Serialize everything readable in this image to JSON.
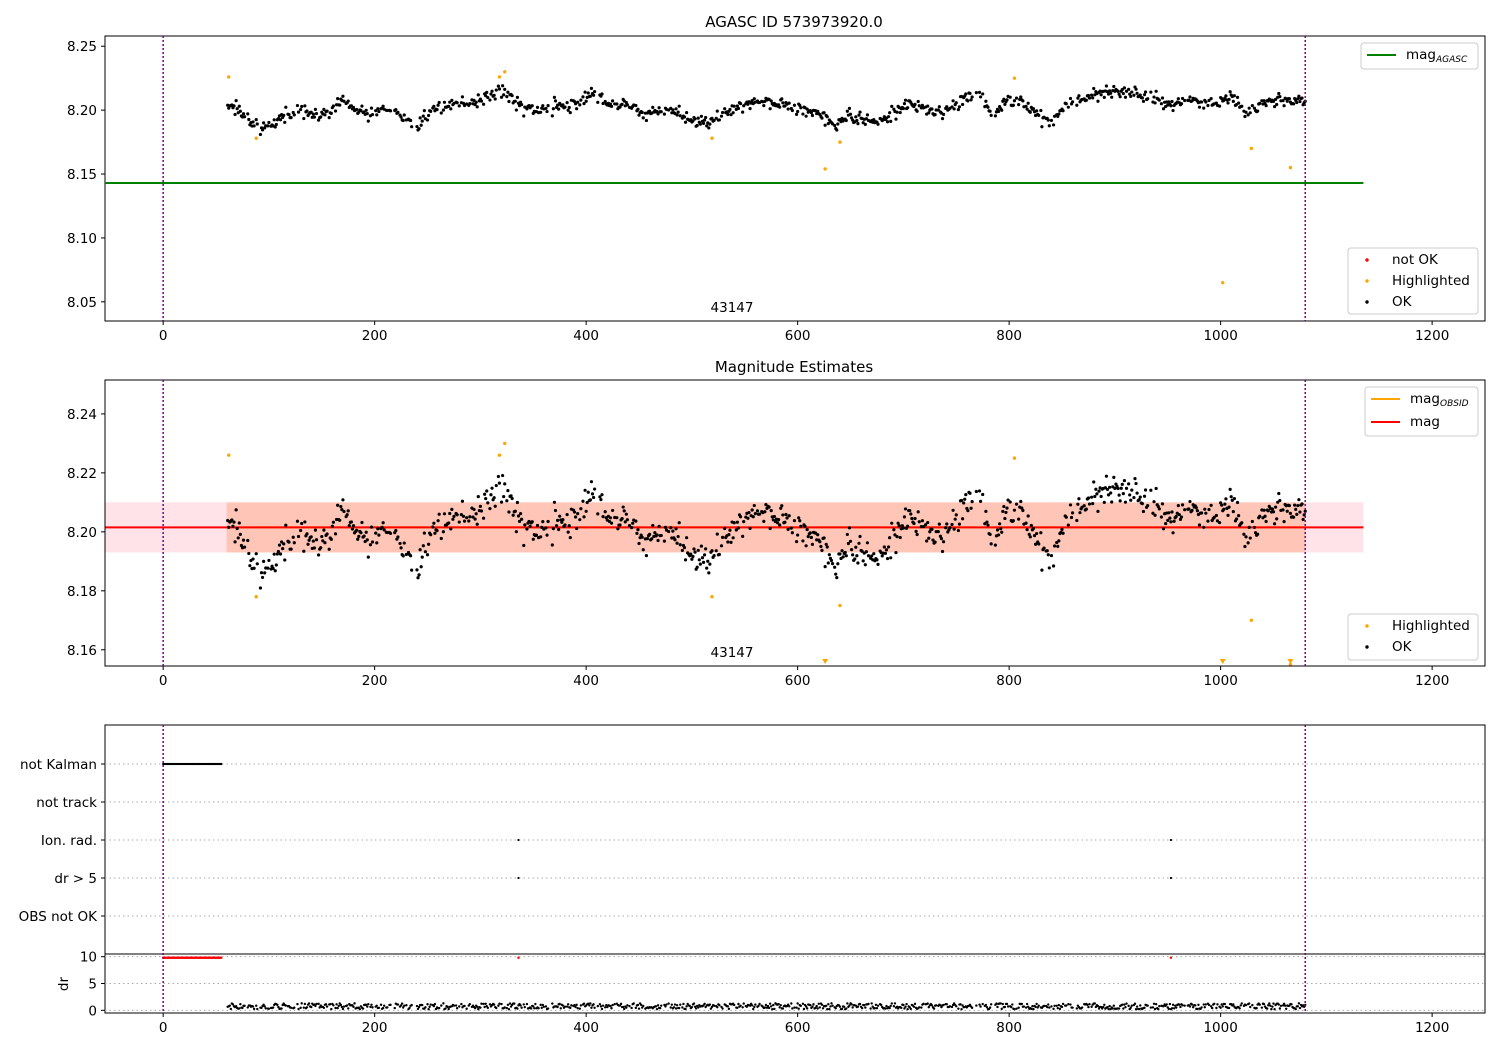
{
  "figure": {
    "axis1_title": "AGASC ID 573973920.0",
    "axis2_title": "Magnitude Estimates",
    "obsid_label": "43147"
  },
  "x_ticks": [
    "0",
    "200",
    "400",
    "600",
    "800",
    "1000",
    "1200"
  ],
  "axis1_yticks": [
    "8.05",
    "8.10",
    "8.15",
    "8.20",
    "8.25"
  ],
  "axis2_yticks": [
    "8.16",
    "8.18",
    "8.20",
    "8.22",
    "8.24"
  ],
  "axis3_flags": [
    "not Kalman",
    "not track",
    "Ion. rad.",
    "dr > 5",
    "OBS not OK"
  ],
  "axis4_yticks": [
    "0",
    "5",
    "10"
  ],
  "axis4_ylabel": "dr",
  "legend1": {
    "line_label_base": "mag",
    "line_label_sub": "AGASC"
  },
  "legend_status1": [
    "not OK",
    "Highlighted",
    "OK"
  ],
  "legend2_lines": [
    {
      "base": "mag",
      "sub": "OBSID",
      "color": "#ffa500"
    },
    {
      "base": "mag",
      "sub": "",
      "color": "#ff0000"
    }
  ],
  "legend_status2": [
    "Highlighted",
    "OK"
  ],
  "colors": {
    "ok": "#000000",
    "highlighted": "#ffa500",
    "not_ok": "#ff0000",
    "agasc_line": "#008000",
    "mag_line": "#ff0000",
    "obsid_band": "#ffa07a",
    "mag_band": "#ffc0cb",
    "obs_boundary": "#800080"
  },
  "chart_data": [
    {
      "type": "scatter",
      "title": "AGASC ID 573973920.0",
      "xlim": [
        -55,
        1250
      ],
      "ylim": [
        8.035,
        8.258
      ],
      "x_range_ok": [
        60,
        1080
      ],
      "agasc_mag": 8.143,
      "agasc_line_x": [
        -55,
        1135
      ],
      "obs_boundaries": [
        0,
        1080
      ],
      "highlighted_points": [
        [
          62,
          8.226
        ],
        [
          88,
          8.178
        ],
        [
          318,
          8.226
        ],
        [
          323,
          8.23
        ],
        [
          519,
          8.178
        ],
        [
          626,
          8.154
        ],
        [
          640,
          8.175
        ],
        [
          805,
          8.225
        ],
        [
          1002,
          8.065
        ],
        [
          1029,
          8.17
        ],
        [
          1066,
          8.155
        ]
      ],
      "series": [
        {
          "name": "OK",
          "segments": [
            [
              60,
              8.204
            ],
            [
              70,
              8.2
            ],
            [
              85,
              8.19
            ],
            [
              100,
              8.186
            ],
            [
              115,
              8.197
            ],
            [
              130,
              8.2
            ],
            [
              150,
              8.195
            ],
            [
              170,
              8.205
            ],
            [
              185,
              8.2
            ],
            [
              200,
              8.197
            ],
            [
              215,
              8.202
            ],
            [
              230,
              8.193
            ],
            [
              240,
              8.186
            ],
            [
              255,
              8.202
            ],
            [
              275,
              8.205
            ],
            [
              290,
              8.205
            ],
            [
              305,
              8.21
            ],
            [
              320,
              8.215
            ],
            [
              335,
              8.205
            ],
            [
              355,
              8.2
            ],
            [
              375,
              8.203
            ],
            [
              395,
              8.205
            ],
            [
              405,
              8.215
            ],
            [
              420,
              8.205
            ],
            [
              440,
              8.203
            ],
            [
              460,
              8.198
            ],
            [
              480,
              8.2
            ],
            [
              500,
              8.193
            ],
            [
              515,
              8.19
            ],
            [
              530,
              8.198
            ],
            [
              555,
              8.205
            ],
            [
              575,
              8.206
            ],
            [
              590,
              8.204
            ],
            [
              605,
              8.2
            ],
            [
              620,
              8.198
            ],
            [
              635,
              8.188
            ],
            [
              650,
              8.196
            ],
            [
              670,
              8.19
            ],
            [
              690,
              8.198
            ],
            [
              705,
              8.205
            ],
            [
              725,
              8.198
            ],
            [
              740,
              8.2
            ],
            [
              755,
              8.206
            ],
            [
              770,
              8.214
            ],
            [
              785,
              8.198
            ],
            [
              800,
              8.207
            ],
            [
              815,
              8.205
            ],
            [
              830,
              8.195
            ],
            [
              840,
              8.19
            ],
            [
              855,
              8.207
            ],
            [
              875,
              8.21
            ],
            [
              895,
              8.215
            ],
            [
              915,
              8.215
            ],
            [
              935,
              8.21
            ],
            [
              955,
              8.205
            ],
            [
              975,
              8.208
            ],
            [
              995,
              8.205
            ],
            [
              1010,
              8.212
            ],
            [
              1025,
              8.198
            ],
            [
              1045,
              8.208
            ],
            [
              1060,
              8.207
            ],
            [
              1080,
              8.207
            ]
          ]
        }
      ]
    },
    {
      "type": "scatter",
      "title": "Magnitude Estimates",
      "xlim": [
        -55,
        1250
      ],
      "ylim": [
        8.1545,
        8.2515
      ],
      "mag": 8.2015,
      "mag_band": [
        8.193,
        8.21
      ],
      "band_x": [
        -55,
        1135
      ],
      "obsid_mag": 8.2015,
      "obsid_band": [
        8.193,
        8.21
      ],
      "obsid_band_x": [
        60,
        1080
      ],
      "offscale_markers_x": [
        626,
        1002,
        1066
      ],
      "obs_boundaries": [
        0,
        1080
      ]
    },
    {
      "type": "scatter",
      "title": "",
      "categories": [
        "not Kalman",
        "not track",
        "Ion. rad.",
        "dr > 5",
        "OBS not OK"
      ],
      "flag_points": {
        "not Kalman": [
          [
            0,
            55
          ]
        ],
        "Ion. rad.": [
          [
            336,
            336
          ],
          [
            953,
            953
          ]
        ],
        "dr > 5": [
          [
            336,
            336
          ],
          [
            953,
            953
          ]
        ]
      },
      "xlim": [
        -55,
        1250
      ]
    },
    {
      "type": "scatter",
      "title": "",
      "ylabel": "dr",
      "xlim": [
        -55,
        1250
      ],
      "ylim": [
        -0.5,
        10.5
      ],
      "not_ok_points": [
        [
          0,
          55,
          9.8
        ],
        [
          336,
          336,
          9.8
        ],
        [
          953,
          953,
          9.8
        ]
      ],
      "dr_typical": [
        0.2,
        1.3
      ]
    }
  ]
}
